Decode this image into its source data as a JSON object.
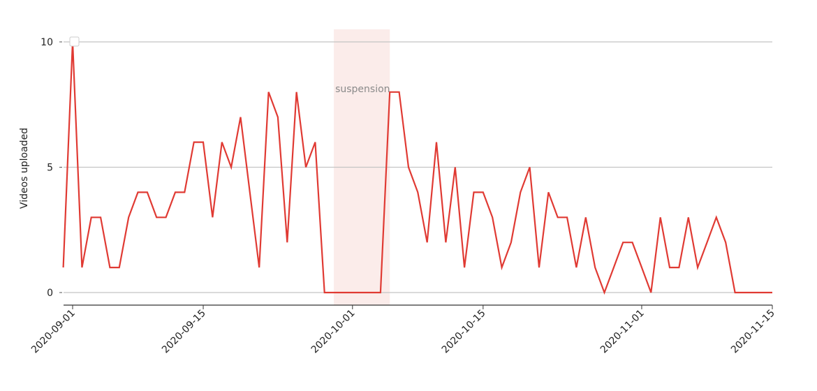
{
  "chart_data": {
    "type": "line",
    "ylabel": "Videos uploaded",
    "xlabel": "",
    "ylim": [
      0,
      10
    ],
    "yticks": [
      0,
      5,
      10
    ],
    "xlim": [
      "2020-09-01",
      "2020-11-15"
    ],
    "xticks": [
      "2020-09-01",
      "2020-09-15",
      "2020-10-01",
      "2020-10-15",
      "2020-11-01",
      "2020-11-15"
    ],
    "grid": "horizontal",
    "line_color": "#e03a33",
    "shade_color": "#fbecea",
    "annotation": {
      "text": "suspension",
      "start": "2020-09-29",
      "end": "2020-10-05"
    },
    "series": [
      {
        "x": [
          "2020-08-31",
          "2020-09-01",
          "2020-09-02",
          "2020-09-03",
          "2020-09-04",
          "2020-09-05",
          "2020-09-06",
          "2020-09-07",
          "2020-09-08",
          "2020-09-09",
          "2020-09-10",
          "2020-09-11",
          "2020-09-12",
          "2020-09-13",
          "2020-09-14",
          "2020-09-15",
          "2020-09-16",
          "2020-09-17",
          "2020-09-18",
          "2020-09-19",
          "2020-09-20",
          "2020-09-21",
          "2020-09-22",
          "2020-09-23",
          "2020-09-24",
          "2020-09-25",
          "2020-09-26",
          "2020-09-27",
          "2020-09-28",
          "2020-09-29",
          "2020-09-30",
          "2020-10-01",
          "2020-10-02",
          "2020-10-03",
          "2020-10-04",
          "2020-10-05",
          "2020-10-06",
          "2020-10-07",
          "2020-10-08",
          "2020-10-09",
          "2020-10-10",
          "2020-10-11",
          "2020-10-12",
          "2020-10-13",
          "2020-10-14",
          "2020-10-15",
          "2020-10-16",
          "2020-10-17",
          "2020-10-18",
          "2020-10-19",
          "2020-10-20",
          "2020-10-21",
          "2020-10-22",
          "2020-10-23",
          "2020-10-24",
          "2020-10-25",
          "2020-10-26",
          "2020-10-27",
          "2020-10-28",
          "2020-10-29",
          "2020-10-30",
          "2020-10-31",
          "2020-11-01",
          "2020-11-02",
          "2020-11-03",
          "2020-11-04",
          "2020-11-05",
          "2020-11-06",
          "2020-11-07",
          "2020-11-08",
          "2020-11-09",
          "2020-11-10",
          "2020-11-11",
          "2020-11-12",
          "2020-11-13",
          "2020-11-14",
          "2020-11-15"
        ],
        "values": [
          1,
          10,
          1,
          3,
          3,
          1,
          1,
          3,
          4,
          4,
          3,
          3,
          4,
          4,
          6,
          6,
          3,
          6,
          5,
          7,
          4,
          1,
          8,
          7,
          2,
          8,
          5,
          6,
          0,
          0,
          0,
          0,
          0,
          0,
          0,
          8,
          8,
          5,
          4,
          2,
          6,
          2,
          5,
          1,
          4,
          4,
          3,
          1,
          2,
          4,
          5,
          1,
          4,
          3,
          3,
          1,
          3,
          1,
          0,
          1,
          2,
          2,
          1,
          0,
          3,
          1,
          1,
          3,
          1,
          2,
          3,
          2,
          0,
          0,
          0,
          0,
          0
        ]
      }
    ]
  }
}
